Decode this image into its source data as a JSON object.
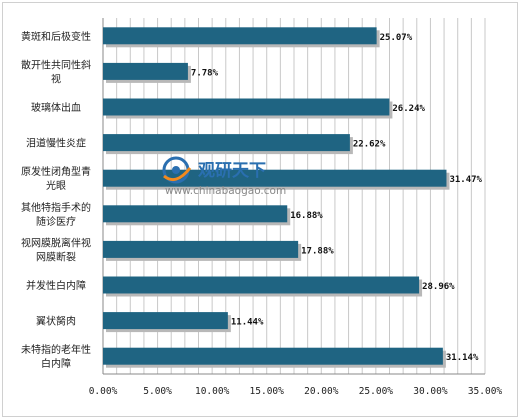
{
  "chart_data": {
    "type": "bar",
    "orientation": "horizontal",
    "categories": [
      "黄斑和后极变性",
      "散开性共同性斜视",
      "玻璃体出血",
      "泪道慢性炎症",
      "原发性闭角型青光眼",
      "其他特指手术的随诊医疗",
      "视网膜脱离伴视网膜断裂",
      "并发性白内障",
      "翼状胬肉",
      "未特指的老年性白内障"
    ],
    "category_lines": [
      [
        "黄斑和后极变性"
      ],
      [
        "散开性共同性斜",
        "视"
      ],
      [
        "玻璃体出血"
      ],
      [
        "泪道慢性炎症"
      ],
      [
        "原发性闭角型青",
        "光眼"
      ],
      [
        "其他特指手术的",
        "随诊医疗"
      ],
      [
        "视网膜脱离伴视",
        "网膜断裂"
      ],
      [
        "并发性白内障"
      ],
      [
        "翼状胬肉"
      ],
      [
        "未特指的老年性",
        "白内障"
      ]
    ],
    "values": [
      25.07,
      7.78,
      26.24,
      22.62,
      31.47,
      16.88,
      17.88,
      28.96,
      11.44,
      31.14
    ],
    "value_labels": [
      "25.07%",
      "7.78%",
      "26.24%",
      "22.62%",
      "31.47%",
      "16.88%",
      "17.88%",
      "28.96%",
      "11.44%",
      "31.14%"
    ],
    "xlim": [
      0,
      35
    ],
    "ticks": [
      0,
      5,
      10,
      15,
      20,
      25,
      30,
      35
    ],
    "tick_labels": [
      "0.00%",
      "5.00%",
      "10.00%",
      "15.00%",
      "20.00%",
      "25.00%",
      "30.00%",
      "35.00%"
    ],
    "grid": "vertical",
    "bar_color": "#1f6482",
    "title": "",
    "xlabel": "",
    "ylabel": ""
  },
  "watermark": {
    "title": "观研天下",
    "url": "www.chinabaogao.com",
    "colors": {
      "blue": "#2a6fb0",
      "orange": "#f28a1e",
      "gray": "#888888"
    }
  }
}
